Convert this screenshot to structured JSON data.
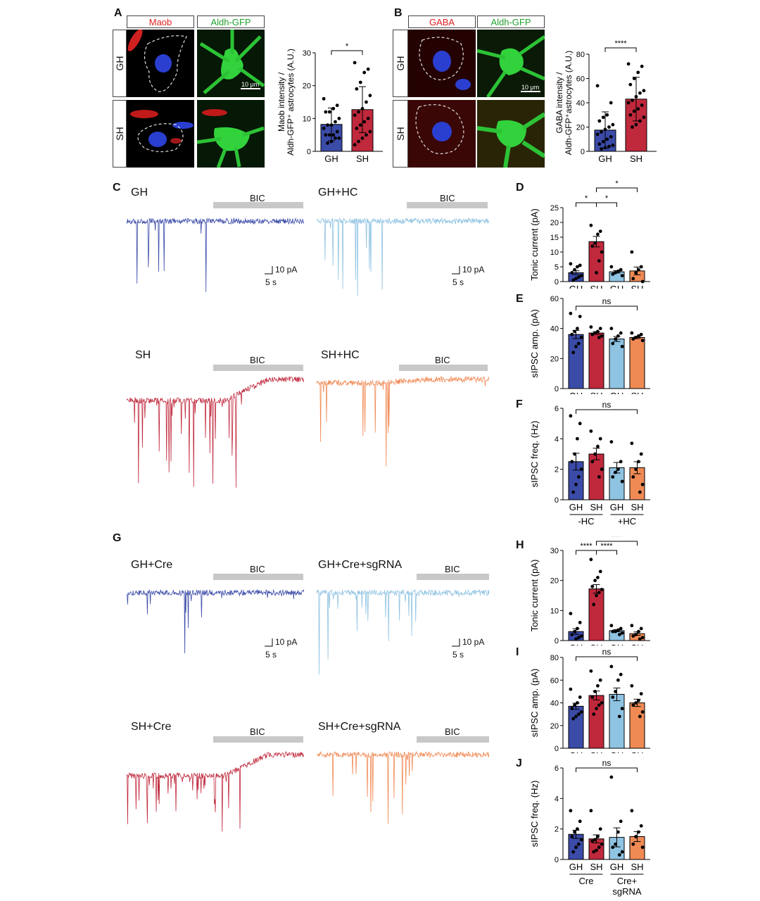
{
  "panels": {
    "A": "A",
    "B": "B",
    "C": "C",
    "D": "D",
    "E": "E",
    "F": "F",
    "G": "G",
    "H": "H",
    "I": "I",
    "J": "J"
  },
  "panelA": {
    "col1": "Maob",
    "col2": "Aldh-GFP",
    "row1": "GH",
    "row2": "SH",
    "scalebar": "10 μm",
    "chart_data": {
      "type": "bar",
      "categories": [
        "GH",
        "SH"
      ],
      "values": [
        8.2,
        12.7
      ],
      "errors": [
        5,
        7
      ],
      "points": [
        [
          16,
          14,
          13,
          12,
          12,
          10,
          9,
          8,
          8,
          7,
          6,
          5,
          5,
          5,
          4,
          4,
          3,
          2.5
        ],
        [
          27,
          25,
          24,
          21,
          19,
          17,
          15,
          13,
          12,
          11,
          10,
          9,
          8,
          7,
          6,
          5,
          4,
          3,
          2
        ]
      ],
      "ylabel": "Maob intensity / Aldh-GFP⁺ astrocytes (A.U.)",
      "ylim": [
        0,
        30
      ],
      "yticks": [
        0,
        10,
        20,
        30
      ],
      "colors": [
        "#3b4ba8",
        "#c0283c"
      ],
      "sig": "*"
    }
  },
  "panelB": {
    "col1": "GABA",
    "col2": "Aldh-GFP",
    "row1": "GH",
    "row2": "SH",
    "scalebar": "10 μm",
    "chart_data": {
      "type": "bar",
      "categories": [
        "GH",
        "SH"
      ],
      "values": [
        17.5,
        43
      ],
      "errors": [
        15,
        18
      ],
      "points": [
        [
          54,
          40,
          30,
          28,
          25,
          22,
          20,
          18,
          16,
          14,
          12,
          10,
          8,
          6,
          5,
          4,
          3,
          2
        ],
        [
          72,
          70,
          65,
          60,
          55,
          50,
          48,
          45,
          42,
          40,
          38,
          35,
          33,
          30,
          28,
          25,
          22,
          20
        ]
      ],
      "ylabel": "GABA intensity / Aldh-GFP⁺astrocytes (A.U.)",
      "ylim": [
        0,
        80
      ],
      "yticks": [
        0,
        20,
        40,
        60,
        80
      ],
      "colors": [
        "#3b4ba8",
        "#c0283c"
      ],
      "sig": "****"
    }
  },
  "panelC": {
    "t1": "GH",
    "t2": "GH+HC",
    "t3": "SH",
    "t4": "SH+HC",
    "bic": "BIC",
    "scale_pa": "10 pA",
    "scale_s": "5 s"
  },
  "panelG": {
    "t1": "GH+Cre",
    "t2": "GH+Cre+sgRNA",
    "t3": "SH+Cre",
    "t4": "SH+Cre+sgRNA",
    "bic": "BIC",
    "scale_pa": "10 pA",
    "scale_s": "5 s"
  },
  "groupLabels1": [
    "-HC",
    "+HC"
  ],
  "groupLabels2": [
    "Cre",
    "Cre+",
    "sgRNA"
  ],
  "chart_data": [
    {
      "id": "D",
      "type": "bar",
      "categories": [
        "GH",
        "SH",
        "GH",
        "SH"
      ],
      "values": [
        3.0,
        13.5,
        3.3,
        3.6
      ],
      "ylabel": "Tonic current (pA)",
      "ylim": [
        0,
        25
      ],
      "yticks": [
        0,
        5,
        10,
        15,
        20,
        25
      ],
      "points": [
        [
          6,
          5.5,
          5,
          4,
          3,
          2,
          1.5,
          1,
          0.5
        ],
        [
          19,
          17,
          16,
          13,
          12,
          10,
          7,
          3
        ],
        [
          5,
          4,
          3.5,
          3,
          2.5,
          2
        ],
        [
          10,
          5,
          4,
          3,
          1,
          0
        ]
      ],
      "sig": [
        "*",
        "*",
        "*"
      ]
    },
    {
      "id": "E",
      "type": "bar",
      "categories": [
        "GH",
        "SH",
        "GH",
        "SH"
      ],
      "values": [
        36,
        37,
        33,
        34
      ],
      "ylabel": "sIPSC amp. (pA)",
      "ylim": [
        0,
        60
      ],
      "yticks": [
        0,
        20,
        40,
        60
      ],
      "points": [
        [
          50,
          48,
          40,
          38,
          36,
          34,
          30,
          28,
          24
        ],
        [
          41,
          40,
          38,
          37,
          36,
          35,
          34
        ],
        [
          40,
          37,
          35,
          33,
          30,
          28
        ],
        [
          37,
          36,
          35,
          34,
          33,
          32
        ]
      ],
      "sig": "ns"
    },
    {
      "id": "F",
      "type": "bar",
      "categories": [
        "GH",
        "SH",
        "GH",
        "SH"
      ],
      "values": [
        2.5,
        3.0,
        2.1,
        2.1
      ],
      "ylabel": "sIPSC freq. (Hz)",
      "ylim": [
        0,
        6
      ],
      "yticks": [
        0,
        2,
        4,
        6
      ],
      "points": [
        [
          5.5,
          5,
          4,
          3,
          2.5,
          2,
          1.5,
          1,
          0.5
        ],
        [
          4.5,
          4,
          3.5,
          3,
          2.5,
          2,
          1.5
        ],
        [
          3.8,
          2.5,
          2,
          1.8,
          1.5,
          1.2
        ],
        [
          3.7,
          3,
          2.5,
          2,
          1.5,
          1,
          0.5
        ]
      ],
      "sig": "ns"
    },
    {
      "id": "H",
      "type": "bar",
      "categories": [
        "GH",
        "SH",
        "GH",
        "SH"
      ],
      "values": [
        3.0,
        17.2,
        3.3,
        2.3
      ],
      "ylabel": "Tonic current (pA)",
      "ylim": [
        0,
        30
      ],
      "yticks": [
        0,
        10,
        20,
        30
      ],
      "points": [
        [
          9,
          6,
          4,
          3,
          2,
          1.5,
          1,
          0.5
        ],
        [
          27,
          23,
          21,
          20,
          18,
          17,
          16,
          15,
          12
        ],
        [
          5,
          4,
          3.5,
          3,
          3,
          2.5,
          2
        ],
        [
          5,
          4,
          3,
          2,
          1.5,
          1,
          0.5
        ]
      ],
      "sig": [
        "****",
        "****",
        "****"
      ]
    },
    {
      "id": "I",
      "type": "bar",
      "categories": [
        "GH",
        "SH",
        "GH",
        "SH"
      ],
      "values": [
        37,
        46.5,
        47.5,
        40
      ],
      "ylabel": "sIPSC amp. (pA)",
      "ylim": [
        0,
        80
      ],
      "yticks": [
        0,
        20,
        40,
        60,
        80
      ],
      "points": [
        [
          52,
          45,
          40,
          38,
          35,
          32,
          30,
          28,
          26
        ],
        [
          68,
          60,
          55,
          50,
          45,
          40,
          38,
          35,
          30
        ],
        [
          72,
          65,
          60,
          50,
          45,
          35,
          28
        ],
        [
          55,
          48,
          42,
          40,
          38,
          32,
          28
        ]
      ],
      "sig": "ns"
    },
    {
      "id": "J",
      "type": "bar",
      "categories": [
        "GH",
        "SH",
        "GH",
        "SH"
      ],
      "values": [
        1.65,
        1.35,
        1.45,
        1.5
      ],
      "ylabel": "sIPSC freq. (Hz)",
      "ylim": [
        0,
        6
      ],
      "yticks": [
        0,
        2,
        4,
        6
      ],
      "points": [
        [
          3.2,
          2.5,
          2,
          1.8,
          1.5,
          1.3,
          1,
          0.8,
          0.5
        ],
        [
          3.2,
          2,
          1.5,
          1.3,
          1.2,
          1,
          0.8,
          0.6,
          0.5
        ],
        [
          5.4,
          2.5,
          1.8,
          1,
          0.8,
          0.5,
          0.3
        ],
        [
          3.2,
          2.2,
          1.8,
          1.5,
          1,
          0.8
        ]
      ],
      "sig": "ns"
    }
  ]
}
